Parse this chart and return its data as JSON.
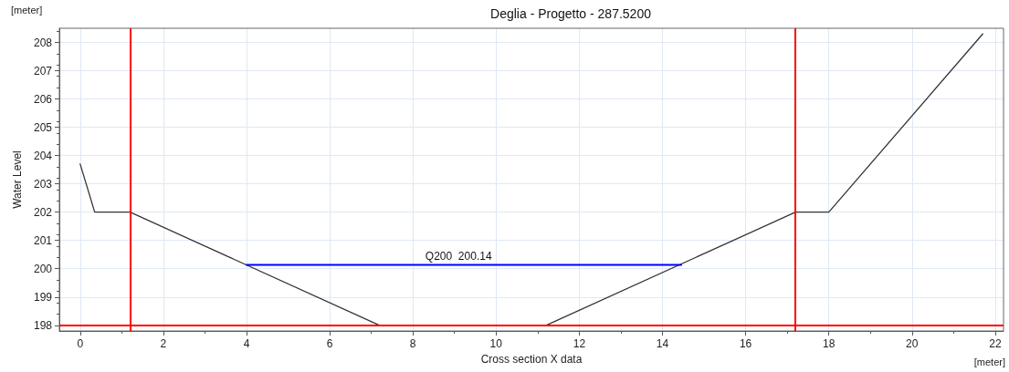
{
  "chart_data": {
    "type": "line",
    "title": "Deglia - Progetto - 287.5200",
    "xlabel": "Cross section X data",
    "ylabel": "Water Level",
    "annotations": [
      "[meter]",
      "[meter]",
      {
        "text": "Q200  200.14",
        "x": 8.3,
        "y": 200.14
      }
    ],
    "series": [
      {
        "color": "#333333",
        "x": [
          0,
          0.35,
          1.2,
          7.2,
          11.2,
          17.2,
          18.0,
          21.7
        ],
        "values": [
          203.7,
          202,
          202,
          198,
          198,
          202,
          202,
          208.3
        ]
      },
      {
        "color": "#0000ff",
        "x": [
          4.0,
          14.45
        ],
        "values": [
          200.14,
          200.14
        ]
      }
    ],
    "ref_lines": [
      {
        "axis": "x",
        "value": 1.2,
        "color": "#ff0000"
      },
      {
        "axis": "x",
        "value": 17.2,
        "color": "#ff0000"
      },
      {
        "axis": "y",
        "value": 198,
        "color": "#ff0000"
      }
    ],
    "xlim": [
      -0.5,
      22.2
    ],
    "xticks": [
      0,
      2,
      4,
      6,
      8,
      10,
      12,
      14,
      16,
      18,
      20,
      22
    ],
    "ylim": [
      197.8,
      208.5
    ],
    "yticks": [
      198,
      199,
      200,
      201,
      202,
      203,
      204,
      205,
      206,
      207,
      208
    ],
    "grid": true,
    "marker": "none",
    "line_style": "solid"
  }
}
